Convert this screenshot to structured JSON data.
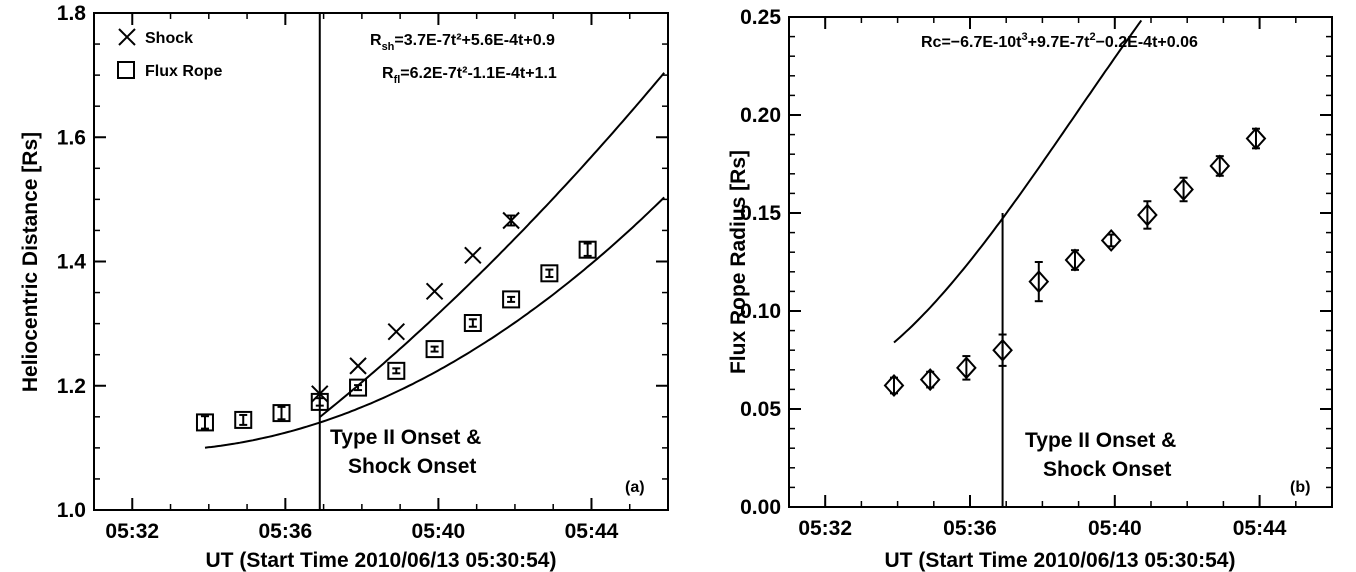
{
  "chart_data": [
    {
      "type": "scatter",
      "panel_label": "(a)",
      "xlabel": "UT (Start Time 2010/06/13 05:30:54)",
      "ylabel": "Heliocentric Distance [Rs]",
      "xlim": [
        "05:31:00",
        "05:46:00"
      ],
      "ylim": [
        1.0,
        1.8
      ],
      "x_ticks": [
        "05:32",
        "05:36",
        "05:40",
        "05:44"
      ],
      "y_ticks": [
        "1.0",
        "1.2",
        "1.4",
        "1.6",
        "1.8"
      ],
      "series": [
        {
          "name": "Shock",
          "marker": "x",
          "x": [
            "05:36:54",
            "05:37:54",
            "05:38:54",
            "05:39:54",
            "05:40:54",
            "05:41:54"
          ],
          "y": [
            1.187,
            1.232,
            1.287,
            1.352,
            1.41,
            1.466
          ],
          "err": [
            0,
            0,
            0,
            0,
            0,
            0.008
          ]
        },
        {
          "name": "Flux Rope",
          "marker": "square",
          "x": [
            "05:33:54",
            "05:34:54",
            "05:35:54",
            "05:36:54",
            "05:37:54",
            "05:38:54",
            "05:39:54",
            "05:40:54",
            "05:41:54",
            "05:42:54",
            "05:43:54"
          ],
          "y": [
            1.141,
            1.145,
            1.156,
            1.174,
            1.197,
            1.224,
            1.259,
            1.301,
            1.339,
            1.381,
            1.419
          ],
          "err": [
            0.01,
            0.008,
            0.01,
            0.006,
            0.004,
            0.004,
            0.004,
            0.006,
            0.004,
            0.006,
            0.01
          ]
        }
      ],
      "fits": [
        {
          "series": "Shock",
          "label": "R",
          "label_sub": "sh",
          "equation": "=3.7E-7t²+5.6E-4t+0.9",
          "coef": [
            0.9,
            0.00056,
            3.7e-07
          ],
          "t_range": [
            360,
            900
          ]
        },
        {
          "series": "Flux Rope",
          "label": "R",
          "label_sub": "fl",
          "equation": "=6.2E-7t²-1.1E-4t+1.1",
          "coef": [
            1.1,
            -0.00011,
            6.2e-07
          ],
          "t_range": [
            180,
            900
          ]
        }
      ],
      "fit_time_origin": "05:30:54",
      "vline": {
        "x": "05:36:54",
        "label_lines": [
          "Type II Onset &",
          "Shock Onset"
        ]
      }
    },
    {
      "type": "scatter",
      "panel_label": "(b)",
      "xlabel": "UT (Start Time 2010/06/13 05:30:54)",
      "ylabel": "Flux Rope Radius [Rs]",
      "xlim": [
        "05:31:00",
        "05:46:00"
      ],
      "ylim": [
        0.0,
        0.25
      ],
      "x_ticks": [
        "05:32",
        "05:36",
        "05:40",
        "05:44"
      ],
      "y_ticks": [
        "0.00",
        "0.05",
        "0.10",
        "0.15",
        "0.20",
        "0.25"
      ],
      "series": [
        {
          "name": "Flux Rope Radius",
          "marker": "diamond",
          "x": [
            "05:33:54",
            "05:34:54",
            "05:35:54",
            "05:36:54",
            "05:37:54",
            "05:38:54",
            "05:39:54",
            "05:40:54",
            "05:41:54",
            "05:42:54",
            "05:43:54"
          ],
          "y": [
            0.062,
            0.065,
            0.071,
            0.08,
            0.115,
            0.126,
            0.136,
            0.149,
            0.162,
            0.174,
            0.188
          ],
          "err": [
            0.004,
            0.004,
            0.006,
            0.008,
            0.01,
            0.005,
            0.003,
            0.007,
            0.006,
            0.005,
            0.005
          ]
        }
      ],
      "fits": [
        {
          "series": "Flux Rope Radius",
          "label": "Rc",
          "equation": "=−6.7E-10t",
          "equation_sup": "3",
          "equation_tail": "+9.7E-7t",
          "equation_sup2": "2",
          "equation_end": "−0.2E-4t+0.06",
          "coef": [
            0.06,
            -2e-05,
            9.7e-07,
            -6.7e-10
          ],
          "t_range": [
            180,
            780
          ]
        }
      ],
      "fit_time_origin": "05:30:54",
      "vline": {
        "x": "05:36:54",
        "y_top": 0.15,
        "label_lines": [
          "Type II Onset &",
          "Shock Onset"
        ]
      }
    }
  ]
}
